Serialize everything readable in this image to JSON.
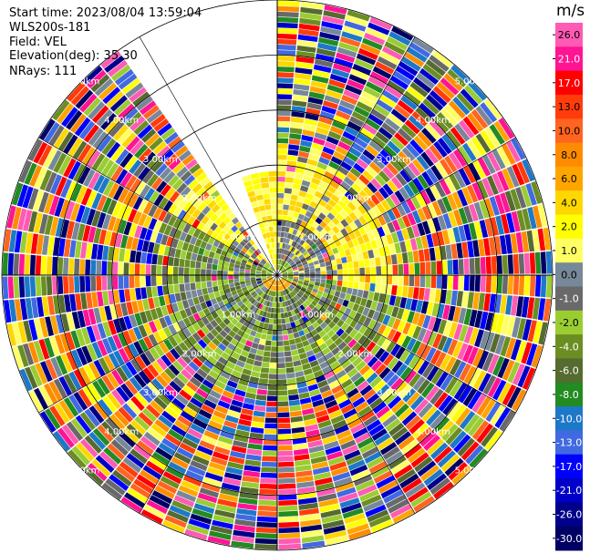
{
  "header": {
    "start_time": "Start time: 2023/08/04 13:59:04",
    "instrument": "WLS200s-181",
    "field": "Field: VEL",
    "elevation": "Elevation(deg): 35.30",
    "nrays": "NRays: 111"
  },
  "chart_data": {
    "type": "heatmap",
    "subtype": "polar-ppi",
    "field": "VEL",
    "elevation_deg": 35.3,
    "n_rays": 111,
    "range_rings_km": [
      1.0,
      2.0,
      3.0,
      4.0,
      5.0
    ],
    "range_ring_labels": [
      "1.00km",
      "2.00km",
      "3.00km",
      "4.00km",
      "5.00km"
    ],
    "max_range_km": 5.0,
    "data_gap_azimuth_deg": [
      325,
      360
    ],
    "colorbar": {
      "unit": "m/s",
      "tick_labels": [
        "26.0",
        "21.0",
        "17.0",
        "13.0",
        "10.0",
        "8.0",
        "6.0",
        "4.0",
        "2.0",
        "1.0",
        "0.0",
        "-1.0",
        "-2.0",
        "-4.0",
        "-6.0",
        "-8.0",
        "-10.0",
        "-13.0",
        "-17.0",
        "-21.0",
        "-26.0",
        "-30.0"
      ],
      "colors": [
        "#ff5ab4",
        "#ff1493",
        "#ff0000",
        "#ff3c0a",
        "#ff6420",
        "#ff8c00",
        "#ffa500",
        "#ffd700",
        "#ffff00",
        "#ffff64",
        "#778899",
        "#696969",
        "#9acd32",
        "#6b8e23",
        "#556b2f",
        "#228b22",
        "#1e78c8",
        "#4169e1",
        "#0000ff",
        "#0000c8",
        "#00008b",
        "#000064"
      ]
    },
    "grid": true
  }
}
